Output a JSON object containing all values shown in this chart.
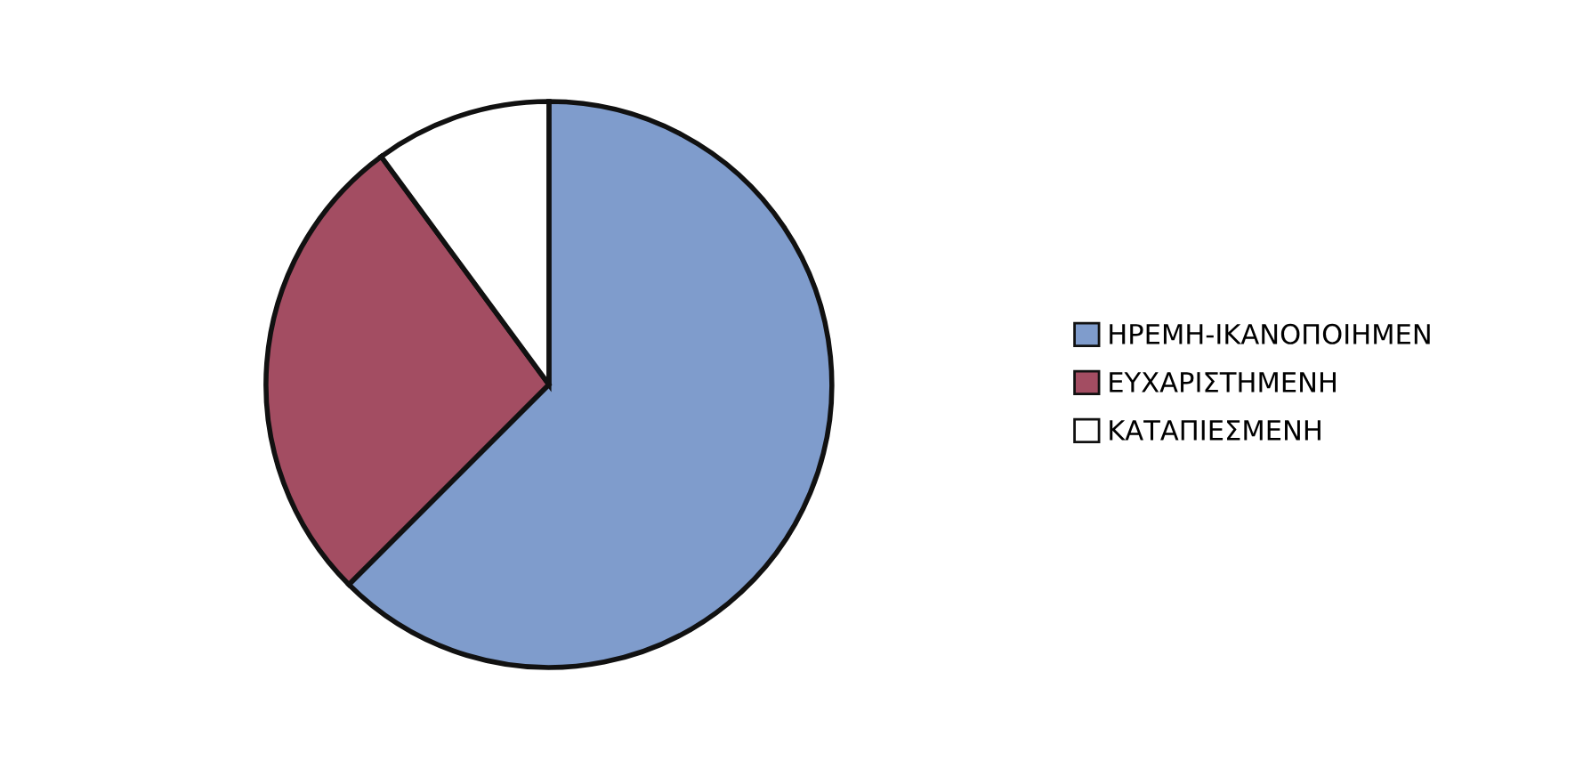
{
  "chart_data": {
    "type": "pie",
    "categories": [
      "ΗΡΕΜΗ-ΙΚΑΝΟΠΟΙΗΜΕΝ",
      "ΕΥΧΑΡΙΣΤΗΜΕΝΗ",
      "ΚΑΤΑΠΙΕΣΜΕΝΗ"
    ],
    "values": [
      62.5,
      27.4,
      10.1
    ],
    "colors": [
      "#7f9ccc",
      "#a34d62",
      "#ffffff"
    ],
    "legend": "right"
  }
}
